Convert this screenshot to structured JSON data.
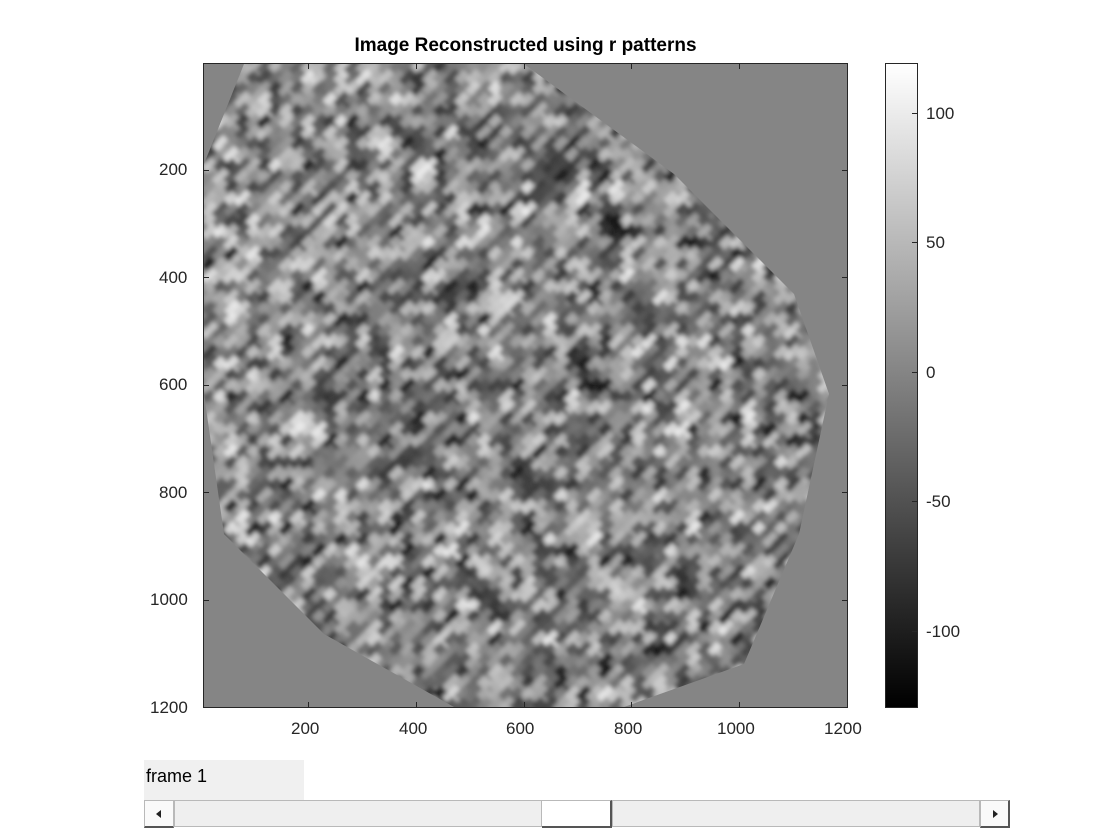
{
  "figure": {
    "title": "Image Reconstructed using r patterns"
  },
  "axes": {
    "x_ticks": [
      "200",
      "400",
      "600",
      "800",
      "1000",
      "1200"
    ],
    "y_ticks": [
      "200",
      "400",
      "600",
      "800",
      "1000",
      "1200"
    ]
  },
  "colorbar": {
    "ticks": [
      "100",
      "50",
      "0",
      "-50",
      "-100"
    ],
    "range": [
      -130,
      120
    ],
    "colormap": "gray"
  },
  "controls": {
    "frame_label": "frame 1",
    "slider_value_fraction": 0.53,
    "left_arrow_icon": "left-arrow-icon",
    "right_arrow_icon": "right-arrow-icon"
  },
  "colors": {
    "background_gray": "#858585",
    "axis": "#262626"
  }
}
